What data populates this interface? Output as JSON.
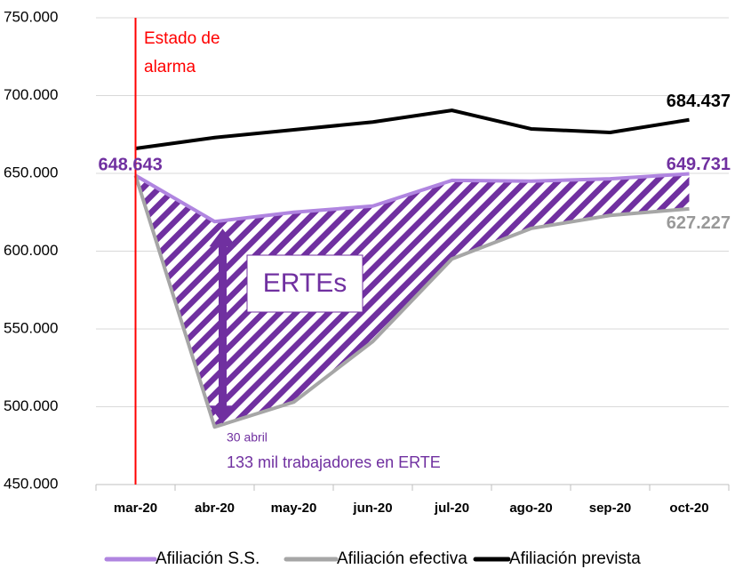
{
  "chart_data": {
    "type": "line",
    "categories": [
      "mar-20",
      "abr-20",
      "may-20",
      "jun-20",
      "jul-20",
      "ago-20",
      "sep-20",
      "oct-20"
    ],
    "series": [
      {
        "name": "Afiliación S.S.",
        "color": "#b085e0",
        "label_color": "#7030a0",
        "values": [
          648643,
          619000,
          625000,
          629000,
          645500,
          645000,
          646500,
          649731
        ],
        "value_labels": [
          "648.643",
          null,
          null,
          null,
          null,
          null,
          null,
          "649.731"
        ]
      },
      {
        "name": "Afiliación efectiva",
        "color": "#a6a6a6",
        "label_color": "#999999",
        "values": [
          648643,
          487000,
          503000,
          542000,
          595000,
          614600,
          623000,
          627227
        ],
        "value_labels": [
          null,
          null,
          null,
          null,
          null,
          null,
          null,
          "627.227"
        ]
      },
      {
        "name": "Afiliación prevista",
        "color": "#000000",
        "label_color": "#000000",
        "values": [
          666000,
          673000,
          678000,
          683000,
          690500,
          678600,
          676300,
          684437
        ],
        "value_labels": [
          null,
          null,
          null,
          null,
          null,
          null,
          null,
          "684.437"
        ]
      }
    ],
    "ylim": [
      450000,
      750000
    ],
    "yticks": [
      {
        "value": 450000,
        "label": "450.000"
      },
      {
        "value": 500000,
        "label": "500.000"
      },
      {
        "value": 550000,
        "label": "550.000"
      },
      {
        "value": 600000,
        "label": "600.000"
      },
      {
        "value": 650000,
        "label": "650.000"
      },
      {
        "value": 700000,
        "label": "700.000"
      },
      {
        "value": 750000,
        "label": "750.000"
      }
    ],
    "grid": true,
    "legend": "bottom",
    "annotations": [
      "Estado de",
      "alarma",
      "ERTEs",
      "30 abril",
      "133 mil trabajadores en ERTE"
    ]
  }
}
